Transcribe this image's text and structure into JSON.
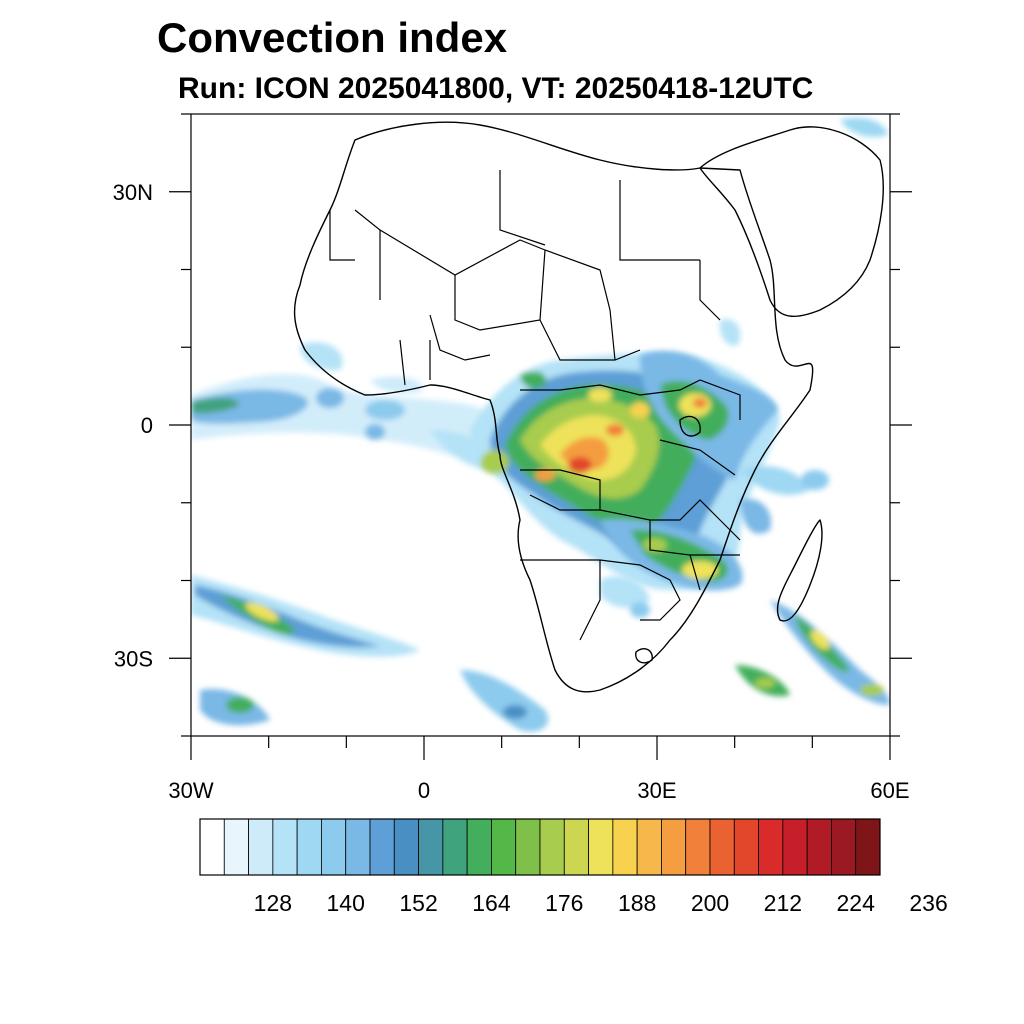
{
  "title": "Convection index",
  "subtitle": "Run: ICON 2025041800,  VT: 20250418-12UTC",
  "map": {
    "projection": "lat-lon",
    "lon_range": [
      -30,
      60
    ],
    "lat_range": [
      -40,
      40
    ],
    "lat_ticks": [
      {
        "value": 30,
        "label": "30N"
      },
      {
        "value": 0,
        "label": "0"
      },
      {
        "value": -30,
        "label": "30S"
      }
    ],
    "lon_ticks": [
      {
        "value": -30,
        "label": "30W"
      },
      {
        "value": 0,
        "label": "0"
      },
      {
        "value": 30,
        "label": "30E"
      },
      {
        "value": 60,
        "label": "60E"
      }
    ],
    "minor_tick_step_deg": 10,
    "features": "coastlines and national borders of Africa, Arabia and Madagascar"
  },
  "colorbar": {
    "colors": [
      "#ffffff",
      "#e8f5fc",
      "#cdebf9",
      "#b4e2f7",
      "#9ed8f3",
      "#8ccbee",
      "#7ab8e6",
      "#5d9fd6",
      "#4a8fc4",
      "#4696a8",
      "#3fa37e",
      "#43ae5c",
      "#54b848",
      "#7ec04a",
      "#a8cc4e",
      "#cdd651",
      "#eee25a",
      "#f8d24f",
      "#f6b84a",
      "#f49d41",
      "#f0803a",
      "#ea6232",
      "#e2472c",
      "#d92c2a",
      "#c61f2a",
      "#b01b26",
      "#9a1922",
      "#7e1619"
    ],
    "labels": [
      "128",
      "140",
      "152",
      "164",
      "176",
      "188",
      "200",
      "212",
      "224",
      "236"
    ]
  },
  "convection_areas": [
    {
      "region": "central-africa-congo-basin",
      "peak_color": "#d92c2a"
    },
    {
      "region": "east-africa-lake-victoria",
      "peak_color": "#f0803a"
    },
    {
      "region": "southern-africa-zambia-mozambique",
      "peak_color": "#eee25a"
    },
    {
      "region": "south-atlantic-band",
      "peak_color": "#eee25a"
    },
    {
      "region": "east-madagascar-band",
      "peak_color": "#eee25a"
    },
    {
      "region": "tropical-atlantic-itcz",
      "peak_color": "#7ab8e6"
    }
  ]
}
